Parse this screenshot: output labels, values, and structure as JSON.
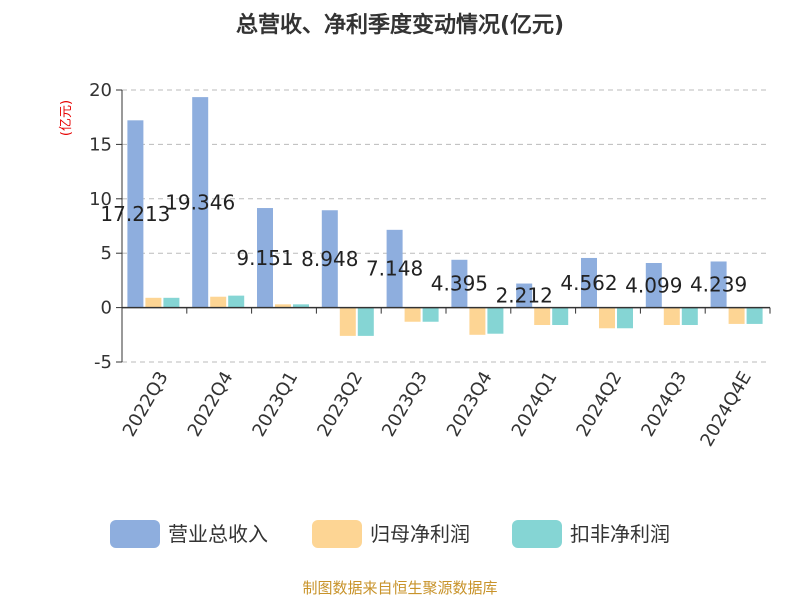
{
  "chart_data": {
    "type": "bar",
    "title": "总营收、净利季度变动情况(亿元)",
    "ylabel": "(亿元)",
    "ylim": [
      -5,
      20
    ],
    "yticks": [
      -5,
      0,
      5,
      10,
      15,
      20
    ],
    "categories": [
      "2022Q3",
      "2022Q4",
      "2023Q1",
      "2023Q2",
      "2023Q3",
      "2023Q4",
      "2024Q1",
      "2024Q2",
      "2024Q3",
      "2024Q4E"
    ],
    "series": [
      {
        "name": "营业总收入",
        "color": "#8eaede",
        "values": [
          17.213,
          19.346,
          9.151,
          8.948,
          7.148,
          4.395,
          2.212,
          4.562,
          4.099,
          4.239
        ],
        "labels": [
          "17.213",
          "19.346",
          "9.151",
          "8.948",
          "7.148",
          "4.395",
          "2.212",
          "4.562",
          "4.099",
          "4.239"
        ]
      },
      {
        "name": "归母净利润",
        "color": "#fdd594",
        "values": [
          0.9,
          1.0,
          0.3,
          -2.6,
          -1.3,
          -2.5,
          -1.6,
          -1.9,
          -1.6,
          -1.5
        ]
      },
      {
        "name": "扣非净利润",
        "color": "#85d5d4",
        "values": [
          0.9,
          1.1,
          0.3,
          -2.6,
          -1.3,
          -2.4,
          -1.6,
          -1.9,
          -1.6,
          -1.5
        ]
      }
    ],
    "grid": true,
    "legend_position": "bottom"
  },
  "colors": {
    "ylabel": "#e60000",
    "source": "#c8932a",
    "axis": "#333333",
    "grid": "#bbbbbb"
  },
  "source_text": "制图数据来自恒生聚源数据库"
}
